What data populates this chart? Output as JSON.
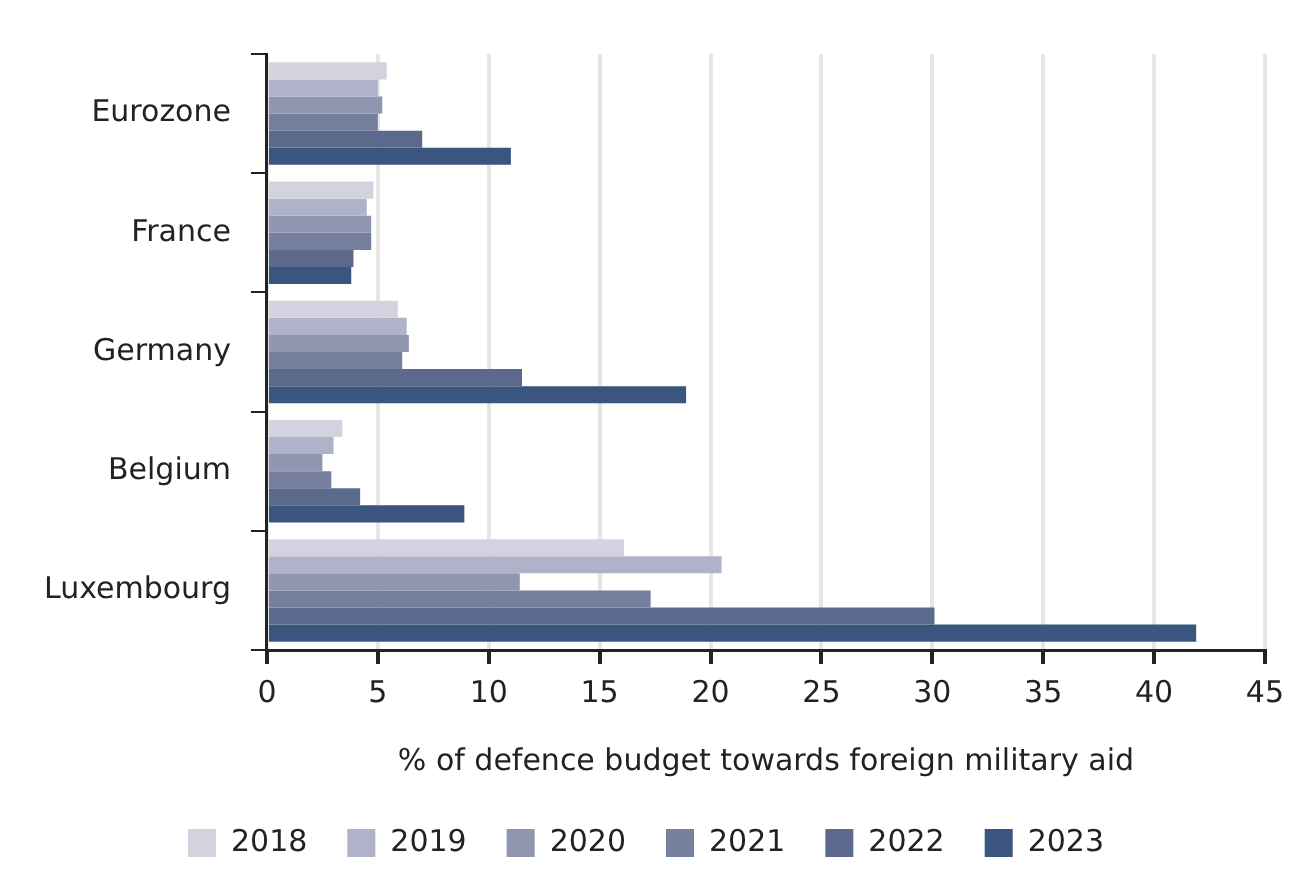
{
  "chart_data": {
    "type": "bar",
    "orientation": "horizontal",
    "xlabel": "% of defence budget towards foreign military aid",
    "categories": [
      "Eurozone",
      "France",
      "Germany",
      "Belgium",
      "Luxembourg"
    ],
    "series": [
      {
        "name": "2018",
        "color": "#d3d3e0",
        "values": [
          5.4,
          4.8,
          5.9,
          3.4,
          16.1
        ]
      },
      {
        "name": "2019",
        "color": "#b0b2c9",
        "values": [
          5.0,
          4.5,
          6.3,
          3.0,
          20.5
        ]
      },
      {
        "name": "2020",
        "color": "#9196b0",
        "values": [
          5.2,
          4.7,
          6.4,
          2.5,
          11.4
        ]
      },
      {
        "name": "2021",
        "color": "#757f9e",
        "values": [
          5.0,
          4.7,
          6.1,
          2.9,
          17.3
        ]
      },
      {
        "name": "2022",
        "color": "#5b6a8c",
        "values": [
          7.0,
          3.9,
          11.5,
          4.2,
          30.1
        ]
      },
      {
        "name": "2023",
        "color": "#3a5680",
        "values": [
          11.0,
          3.8,
          18.9,
          8.9,
          41.9
        ]
      }
    ],
    "xlim": [
      0,
      45
    ],
    "xticks": [
      0,
      5,
      10,
      15,
      20,
      25,
      30,
      35,
      40,
      45
    ],
    "grid": "x",
    "legend": "bottom"
  }
}
